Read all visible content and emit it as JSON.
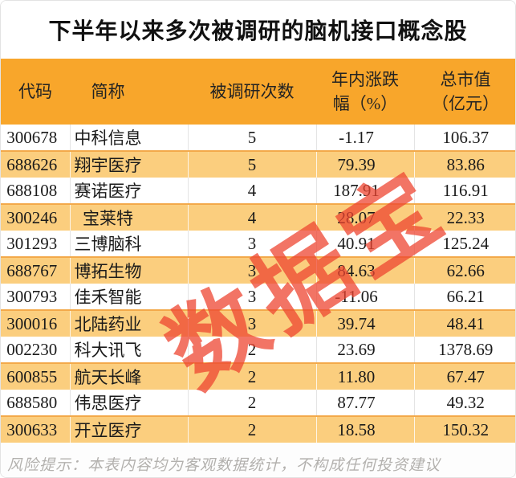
{
  "title": "下半年以来多次被调研的脑机接口概念股",
  "watermark": "数据宝",
  "colors": {
    "header_bg": "#F8A62B",
    "row_alt_bg": "#FBCE7E",
    "watermark_red": "#EE4632",
    "footer_text": "#B3B1AE"
  },
  "table": {
    "columns": [
      "代码",
      "简称",
      "被调研次数",
      "年内涨跌\n幅（%）",
      "总市值\n（亿元）"
    ],
    "rows": [
      {
        "code": "300678",
        "name": "中科信息",
        "times": "5",
        "change": "-1.17",
        "mcap": "106.37"
      },
      {
        "code": "688626",
        "name": "翔宇医疗",
        "times": "5",
        "change": "79.39",
        "mcap": "83.86"
      },
      {
        "code": "688108",
        "name": "赛诺医疗",
        "times": "4",
        "change": "187.91",
        "mcap": "116.91"
      },
      {
        "code": "300246",
        "name": "宝莱特",
        "times": "4",
        "change": "28.07",
        "mcap": "22.33"
      },
      {
        "code": "301293",
        "name": "三博脑科",
        "times": "3",
        "change": "40.91",
        "mcap": "125.24"
      },
      {
        "code": "688767",
        "name": "博拓生物",
        "times": "3",
        "change": "84.63",
        "mcap": "62.66"
      },
      {
        "code": "300793",
        "name": "佳禾智能",
        "times": "3",
        "change": "-11.06",
        "mcap": "66.21"
      },
      {
        "code": "300016",
        "name": "北陆药业",
        "times": "3",
        "change": "39.74",
        "mcap": "48.41"
      },
      {
        "code": "002230",
        "name": "科大讯飞",
        "times": "2",
        "change": "23.69",
        "mcap": "1378.69"
      },
      {
        "code": "600855",
        "name": "航天长峰",
        "times": "2",
        "change": "11.80",
        "mcap": "67.47"
      },
      {
        "code": "688580",
        "name": "伟思医疗",
        "times": "2",
        "change": "87.77",
        "mcap": "49.32"
      },
      {
        "code": "300633",
        "name": "开立医疗",
        "times": "2",
        "change": "18.58",
        "mcap": "150.32"
      }
    ]
  },
  "footer": "风险提示：本表内容均为客观数据统计，不构成任何投资建议"
}
